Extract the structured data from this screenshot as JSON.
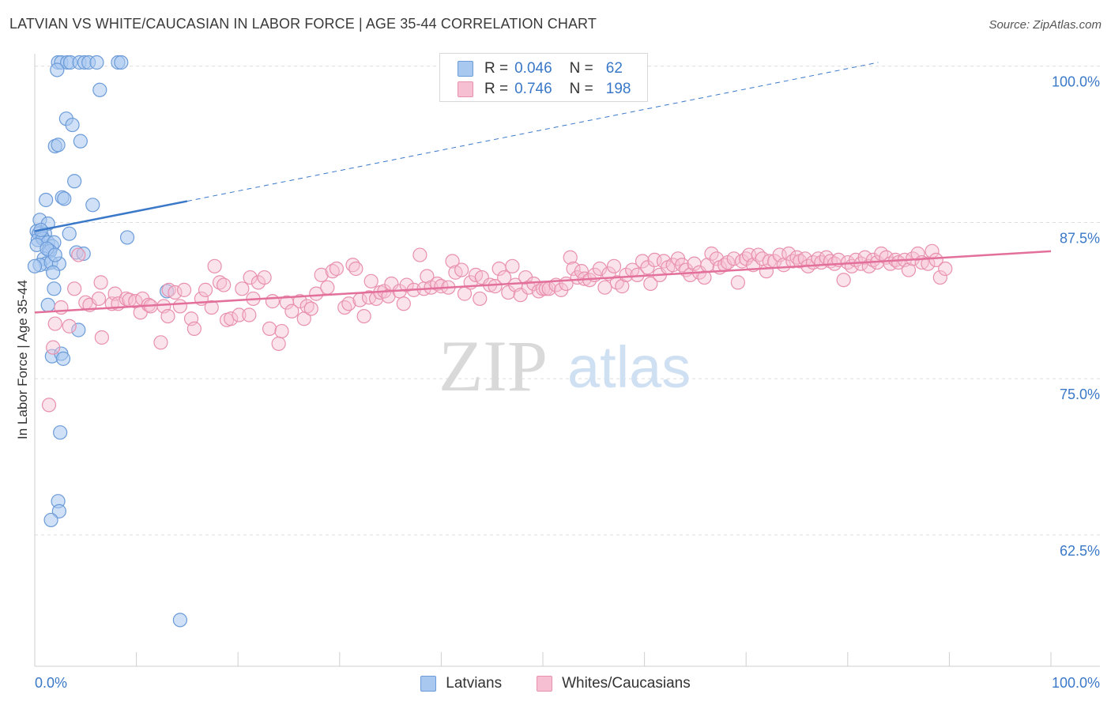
{
  "header": {
    "title": "LATVIAN VS WHITE/CAUCASIAN IN LABOR FORCE | AGE 35-44 CORRELATION CHART",
    "source": "Source: ZipAtlas.com"
  },
  "watermark": {
    "zip": "ZIP",
    "atlas": "atlas"
  },
  "legend": {
    "rows": [
      {
        "r_label": "R =",
        "r_value": "0.046",
        "n_label": "N =",
        "n_value": "62",
        "color": "#a9c8f0",
        "border": "#6b9bd8"
      },
      {
        "r_label": "R =",
        "r_value": "0.746",
        "n_label": "N =",
        "n_value": "198",
        "color": "#f7c0d2",
        "border": "#e890ae"
      }
    ],
    "bottom": [
      {
        "label": "Latvians",
        "color": "#a9c8f0",
        "border": "#6b9bd8"
      },
      {
        "label": "Whites/Caucasians",
        "color": "#f7c0d2",
        "border": "#e890ae"
      }
    ]
  },
  "chart_data": {
    "type": "scatter",
    "title": "LATVIAN VS WHITE/CAUCASIAN IN LABOR FORCE | AGE 35-44 CORRELATION CHART",
    "xlabel": "",
    "ylabel": "In Labor Force | Age 35-44",
    "xlim": [
      0,
      100
    ],
    "ylim": [
      52,
      101.5
    ],
    "x_tick_labels": [
      "0.0%",
      "100.0%"
    ],
    "y_ticks": [
      62.5,
      75.0,
      87.5,
      100.0
    ],
    "y_tick_labels": [
      "62.5%",
      "75.0%",
      "87.5%",
      "100.0%"
    ],
    "grid": true,
    "legend_position": "top-center",
    "series": [
      {
        "name": "Latvians",
        "color": "#6b9bd8",
        "fill": "#a9c8f0",
        "trend": {
          "x0": 0,
          "y0": 86.8,
          "x1": 15,
          "y1": 89.2,
          "extend_to_x": 83,
          "extend_to_y": 100.3
        },
        "points": [
          [
            2.3,
            100.3
          ],
          [
            2.6,
            100.3
          ],
          [
            3.2,
            100.3
          ],
          [
            3.5,
            100.3
          ],
          [
            4.4,
            100.3
          ],
          [
            4.9,
            100.3
          ],
          [
            5.3,
            100.3
          ],
          [
            6.1,
            100.3
          ],
          [
            8.2,
            100.3
          ],
          [
            8.5,
            100.3
          ],
          [
            2.2,
            99.7
          ],
          [
            6.4,
            98.1
          ],
          [
            3.1,
            95.8
          ],
          [
            3.7,
            95.3
          ],
          [
            2.0,
            93.6
          ],
          [
            2.3,
            93.7
          ],
          [
            4.5,
            94.0
          ],
          [
            3.9,
            90.8
          ],
          [
            1.1,
            89.3
          ],
          [
            2.7,
            89.5
          ],
          [
            2.9,
            89.4
          ],
          [
            5.7,
            88.9
          ],
          [
            0.5,
            87.7
          ],
          [
            1.3,
            87.4
          ],
          [
            0.2,
            86.8
          ],
          [
            0.4,
            86.6
          ],
          [
            0.7,
            86.4
          ],
          [
            1.0,
            86.6
          ],
          [
            3.4,
            86.6
          ],
          [
            0.3,
            86.1
          ],
          [
            0.8,
            86.2
          ],
          [
            1.3,
            85.9
          ],
          [
            0.2,
            85.7
          ],
          [
            1.4,
            85.3
          ],
          [
            1.7,
            85.6
          ],
          [
            1.9,
            85.9
          ],
          [
            1.5,
            85.2
          ],
          [
            9.1,
            86.3
          ],
          [
            4.1,
            85.1
          ],
          [
            4.8,
            85.0
          ],
          [
            0.9,
            84.6
          ],
          [
            1.1,
            84.2
          ],
          [
            0.5,
            84.1
          ],
          [
            1.6,
            84.3
          ],
          [
            2.4,
            84.2
          ],
          [
            0.0,
            84.0
          ],
          [
            1.8,
            83.5
          ],
          [
            1.9,
            82.2
          ],
          [
            13.0,
            82.0
          ],
          [
            1.3,
            80.9
          ],
          [
            4.3,
            78.9
          ],
          [
            1.7,
            76.8
          ],
          [
            2.6,
            77.0
          ],
          [
            2.8,
            76.6
          ],
          [
            2.5,
            70.7
          ],
          [
            2.3,
            65.2
          ],
          [
            2.4,
            64.4
          ],
          [
            1.6,
            63.7
          ],
          [
            14.3,
            55.7
          ],
          [
            1.2,
            85.4
          ],
          [
            0.6,
            86.9
          ],
          [
            2.0,
            84.9
          ]
        ]
      },
      {
        "name": "Whites/Caucasians",
        "color": "#e890ae",
        "fill": "#f7c0d2",
        "trend": {
          "x0": 0,
          "y0": 80.3,
          "x1": 100,
          "y1": 85.2
        },
        "points": [
          [
            1.4,
            72.9
          ],
          [
            1.8,
            77.5
          ],
          [
            2.0,
            79.4
          ],
          [
            2.6,
            80.7
          ],
          [
            3.4,
            79.2
          ],
          [
            3.9,
            82.2
          ],
          [
            4.3,
            84.9
          ],
          [
            5.0,
            81.1
          ],
          [
            5.4,
            80.9
          ],
          [
            6.3,
            81.4
          ],
          [
            6.6,
            78.3
          ],
          [
            6.5,
            82.7
          ],
          [
            7.6,
            81.0
          ],
          [
            7.9,
            81.8
          ],
          [
            8.2,
            81.0
          ],
          [
            9.0,
            81.4
          ],
          [
            9.3,
            81.3
          ],
          [
            9.9,
            81.2
          ],
          [
            10.4,
            80.3
          ],
          [
            10.6,
            81.4
          ],
          [
            11.2,
            80.9
          ],
          [
            11.4,
            80.8
          ],
          [
            12.4,
            77.9
          ],
          [
            12.7,
            80.8
          ],
          [
            13.1,
            80.0
          ],
          [
            13.2,
            82.1
          ],
          [
            13.8,
            81.9
          ],
          [
            14.3,
            80.8
          ],
          [
            14.7,
            82.1
          ],
          [
            15.4,
            79.8
          ],
          [
            15.7,
            79.0
          ],
          [
            16.4,
            81.4
          ],
          [
            16.8,
            82.1
          ],
          [
            17.4,
            80.7
          ],
          [
            17.7,
            84.0
          ],
          [
            18.2,
            82.7
          ],
          [
            18.6,
            82.5
          ],
          [
            18.9,
            79.7
          ],
          [
            19.3,
            79.8
          ],
          [
            20.1,
            80.1
          ],
          [
            20.4,
            82.2
          ],
          [
            21.1,
            80.1
          ],
          [
            21.2,
            83.1
          ],
          [
            21.5,
            81.4
          ],
          [
            22.0,
            82.7
          ],
          [
            22.6,
            83.1
          ],
          [
            23.1,
            79.0
          ],
          [
            23.4,
            81.2
          ],
          [
            24.0,
            77.8
          ],
          [
            24.3,
            78.8
          ],
          [
            24.8,
            81.1
          ],
          [
            25.3,
            80.4
          ],
          [
            26.1,
            81.2
          ],
          [
            26.5,
            79.8
          ],
          [
            26.8,
            80.8
          ],
          [
            27.2,
            80.6
          ],
          [
            27.7,
            81.8
          ],
          [
            28.2,
            83.3
          ],
          [
            28.8,
            82.3
          ],
          [
            29.3,
            83.6
          ],
          [
            29.7,
            83.8
          ],
          [
            30.5,
            80.7
          ],
          [
            30.9,
            81.0
          ],
          [
            31.3,
            84.1
          ],
          [
            31.6,
            83.8
          ],
          [
            32.0,
            81.3
          ],
          [
            32.4,
            80.0
          ],
          [
            32.9,
            81.5
          ],
          [
            33.1,
            82.8
          ],
          [
            33.6,
            81.4
          ],
          [
            34.0,
            81.9
          ],
          [
            34.4,
            82.0
          ],
          [
            34.8,
            81.6
          ],
          [
            35.1,
            82.6
          ],
          [
            35.9,
            82.0
          ],
          [
            36.3,
            81.0
          ],
          [
            36.6,
            82.5
          ],
          [
            37.3,
            82.1
          ],
          [
            37.9,
            84.9
          ],
          [
            38.3,
            82.2
          ],
          [
            38.6,
            83.2
          ],
          [
            39.0,
            82.3
          ],
          [
            39.6,
            82.6
          ],
          [
            40.0,
            82.4
          ],
          [
            40.7,
            82.3
          ],
          [
            41.1,
            84.4
          ],
          [
            41.4,
            83.5
          ],
          [
            42.0,
            83.7
          ],
          [
            42.3,
            81.8
          ],
          [
            42.9,
            82.7
          ],
          [
            43.4,
            83.3
          ],
          [
            43.8,
            81.4
          ],
          [
            44.0,
            83.1
          ],
          [
            44.8,
            82.5
          ],
          [
            45.3,
            82.4
          ],
          [
            45.7,
            83.8
          ],
          [
            46.2,
            83.1
          ],
          [
            46.6,
            81.9
          ],
          [
            47.0,
            84.0
          ],
          [
            47.3,
            82.5
          ],
          [
            47.8,
            81.7
          ],
          [
            48.3,
            83.1
          ],
          [
            48.6,
            82.3
          ],
          [
            49.1,
            82.6
          ],
          [
            49.6,
            82.0
          ],
          [
            50.0,
            82.2
          ],
          [
            50.3,
            82.2
          ],
          [
            50.6,
            82.2
          ],
          [
            51.3,
            82.5
          ],
          [
            51.8,
            82.1
          ],
          [
            52.3,
            82.6
          ],
          [
            52.7,
            84.7
          ],
          [
            53.0,
            83.8
          ],
          [
            53.4,
            83.1
          ],
          [
            53.8,
            83.6
          ],
          [
            54.1,
            83.0
          ],
          [
            54.6,
            82.9
          ],
          [
            55.1,
            83.3
          ],
          [
            55.6,
            83.8
          ],
          [
            56.1,
            82.3
          ],
          [
            56.5,
            83.4
          ],
          [
            57.0,
            84.0
          ],
          [
            57.3,
            82.7
          ],
          [
            57.8,
            82.4
          ],
          [
            58.2,
            83.3
          ],
          [
            58.8,
            83.7
          ],
          [
            59.3,
            83.3
          ],
          [
            59.8,
            84.4
          ],
          [
            60.3,
            83.9
          ],
          [
            60.6,
            82.6
          ],
          [
            61.0,
            84.5
          ],
          [
            61.5,
            83.3
          ],
          [
            61.9,
            84.4
          ],
          [
            62.3,
            83.9
          ],
          [
            62.8,
            84.1
          ],
          [
            63.3,
            84.6
          ],
          [
            63.7,
            84.1
          ],
          [
            64.1,
            83.7
          ],
          [
            64.5,
            83.3
          ],
          [
            64.9,
            84.2
          ],
          [
            65.4,
            83.5
          ],
          [
            65.9,
            83.1
          ],
          [
            66.2,
            84.1
          ],
          [
            66.6,
            85.0
          ],
          [
            67.1,
            84.6
          ],
          [
            67.4,
            83.9
          ],
          [
            67.9,
            84.1
          ],
          [
            68.2,
            84.3
          ],
          [
            68.8,
            84.6
          ],
          [
            69.2,
            82.7
          ],
          [
            69.6,
            84.4
          ],
          [
            70.0,
            84.6
          ],
          [
            70.3,
            84.9
          ],
          [
            70.7,
            84.1
          ],
          [
            71.2,
            84.9
          ],
          [
            71.6,
            84.6
          ],
          [
            72.0,
            83.6
          ],
          [
            72.3,
            84.4
          ],
          [
            72.8,
            84.4
          ],
          [
            73.3,
            84.9
          ],
          [
            73.7,
            84.1
          ],
          [
            74.2,
            85.0
          ],
          [
            74.6,
            84.4
          ],
          [
            75.0,
            84.7
          ],
          [
            75.3,
            84.4
          ],
          [
            75.8,
            84.6
          ],
          [
            76.1,
            84.0
          ],
          [
            76.6,
            84.3
          ],
          [
            77.1,
            84.6
          ],
          [
            77.4,
            84.3
          ],
          [
            77.9,
            84.7
          ],
          [
            78.3,
            84.4
          ],
          [
            78.7,
            84.2
          ],
          [
            79.1,
            84.5
          ],
          [
            79.6,
            82.9
          ],
          [
            80.0,
            84.3
          ],
          [
            80.4,
            84.0
          ],
          [
            80.8,
            84.5
          ],
          [
            81.3,
            84.2
          ],
          [
            81.7,
            84.7
          ],
          [
            82.1,
            84.0
          ],
          [
            82.5,
            84.5
          ],
          [
            82.9,
            84.3
          ],
          [
            83.3,
            85.0
          ],
          [
            83.8,
            84.7
          ],
          [
            84.2,
            84.2
          ],
          [
            84.7,
            84.5
          ],
          [
            85.0,
            84.3
          ],
          [
            85.6,
            84.5
          ],
          [
            86.0,
            83.7
          ],
          [
            86.4,
            84.6
          ],
          [
            86.9,
            85.0
          ],
          [
            87.3,
            84.3
          ],
          [
            87.9,
            84.2
          ],
          [
            88.3,
            85.2
          ],
          [
            88.7,
            84.5
          ],
          [
            89.1,
            83.1
          ],
          [
            89.6,
            83.8
          ]
        ]
      }
    ]
  }
}
